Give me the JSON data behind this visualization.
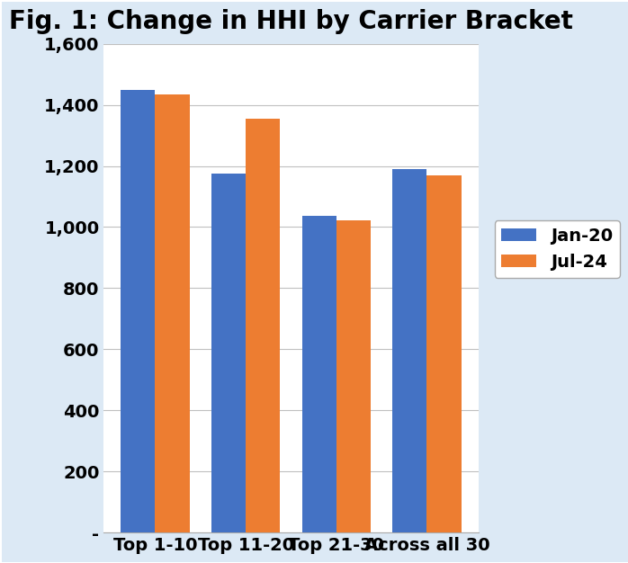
{
  "title": "Fig. 1: Change in HHI by Carrier Bracket",
  "categories": [
    "Top 1-10",
    "Top 11-20",
    "Top 21-30",
    "Across all 30"
  ],
  "series": [
    {
      "label": "Jan-20",
      "values": [
        1450,
        1175,
        1037,
        1190
      ],
      "color": "#4472C4"
    },
    {
      "label": "Jul-24",
      "values": [
        1435,
        1355,
        1022,
        1170
      ],
      "color": "#ED7D31"
    }
  ],
  "ylim": [
    0,
    1600
  ],
  "yticks": [
    0,
    200,
    400,
    600,
    800,
    1000,
    1200,
    1400,
    1600
  ],
  "ytick_labels": [
    "-",
    "200",
    "400",
    "600",
    "800",
    "1,000",
    "1,200",
    "1,400",
    "1,600"
  ],
  "bar_width": 0.38,
  "background_color": "#FFFFFF",
  "plot_bg_color": "#FFFFFF",
  "outer_bg_color": "#DCE9F5",
  "title_fontsize": 20,
  "tick_fontsize": 14,
  "legend_fontsize": 14,
  "xlabel_fontsize": 14,
  "grid_color": "#C0C0C0",
  "border_color": "#2E74B5"
}
